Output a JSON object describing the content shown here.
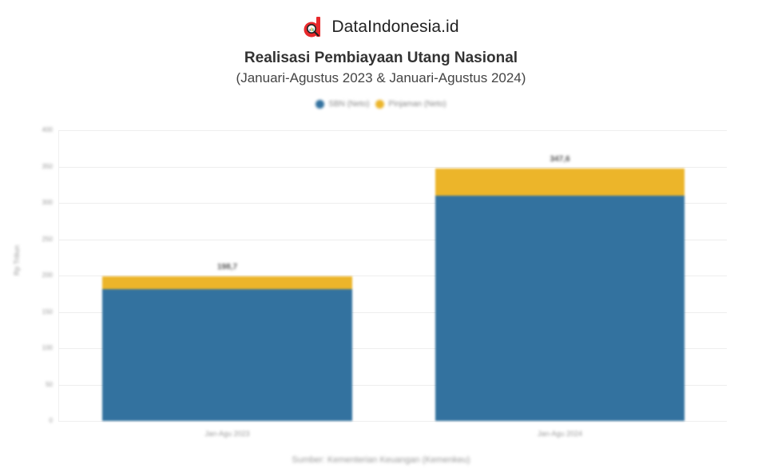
{
  "brand": {
    "name": "DataIndonesia.id",
    "logo_color": "#e8292c"
  },
  "title": "Realisasi Pembiayaan Utang Nasional",
  "subtitle": "(Januari-Agustus 2023 & Januari-Agustus 2024)",
  "source": "Sumber: Kementerian Keuangan (Kemenkeu)",
  "colors": {
    "sbn": "#33729f",
    "pinjaman": "#ecb52a"
  },
  "chart_data": {
    "type": "bar",
    "stacked": true,
    "title": "Realisasi Pembiayaan Utang Nasional",
    "subtitle": "(Januari-Agustus 2023 & Januari-Agustus 2024)",
    "xlabel": "",
    "ylabel": "Rp Triliun",
    "ylim": [
      0,
      400
    ],
    "yticks": [
      0,
      50,
      100,
      150,
      200,
      250,
      300,
      350,
      400
    ],
    "grid": true,
    "legend_position": "top",
    "categories": [
      "Jan-Agu 2023",
      "Jan-Agu 2024"
    ],
    "series": [
      {
        "name": "SBN (Neto)",
        "color": "#33729f",
        "values": [
          181.4,
          309.4
        ]
      },
      {
        "name": "Pinjaman (Neto)",
        "color": "#ecb52a",
        "values": [
          17.3,
          38.2
        ]
      }
    ],
    "totals": [
      198.7,
      347.6
    ],
    "total_labels": [
      "198,7",
      "347,6"
    ]
  },
  "legend": [
    {
      "label": "SBN (Neto)",
      "color": "#33729f"
    },
    {
      "label": "Pinjaman (Neto)",
      "color": "#ecb52a"
    }
  ],
  "yaxis": {
    "label": "Rp Triliun",
    "ticks": [
      "400",
      "350",
      "300",
      "250",
      "200",
      "150",
      "100",
      "50",
      "0"
    ]
  }
}
